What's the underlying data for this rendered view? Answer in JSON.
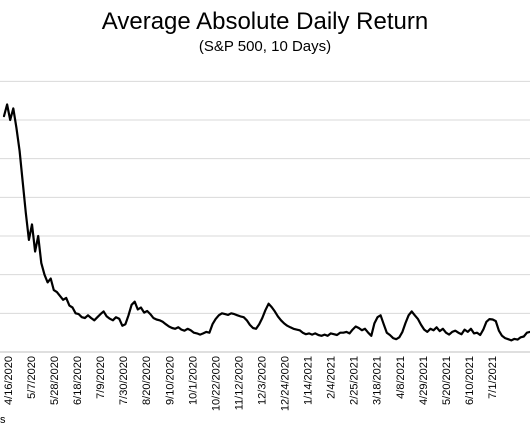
{
  "chart_data": {
    "type": "line",
    "title": "Average Absolute Daily Return",
    "subtitle": "(S&P 500, 10 Days)",
    "xlabel": "",
    "ylabel": "",
    "grid": true,
    "x_tick_labels": [
      "4/16/2020",
      "5/7/2020",
      "5/28/2020",
      "6/18/2020",
      "7/9/2020",
      "7/30/2020",
      "8/20/2020",
      "9/10/2020",
      "10/1/2020",
      "10/22/2020",
      "11/12/2020",
      "12/3/2020",
      "12/24/2020",
      "1/14/2021",
      "2/4/2021",
      "2/25/2021",
      "3/18/2021",
      "4/8/2021",
      "4/29/2021",
      "5/20/2021",
      "6/10/2021",
      "7/1/2021"
    ],
    "series": [
      {
        "values": [
          6.1,
          6.4,
          6.0,
          6.3,
          5.8,
          5.2,
          4.4,
          3.6,
          2.9,
          3.3,
          2.6,
          3.0,
          2.3,
          2.0,
          1.8,
          1.9,
          1.6,
          1.55,
          1.45,
          1.35,
          1.4,
          1.2,
          1.15,
          1.0,
          0.98,
          0.9,
          0.88,
          0.95,
          0.88,
          0.82,
          0.9,
          0.98,
          1.05,
          0.92,
          0.86,
          0.82,
          0.9,
          0.86,
          0.68,
          0.72,
          0.95,
          1.22,
          1.3,
          1.1,
          1.15,
          1.02,
          1.06,
          0.98,
          0.88,
          0.84,
          0.82,
          0.78,
          0.72,
          0.66,
          0.62,
          0.6,
          0.64,
          0.58,
          0.55,
          0.6,
          0.56,
          0.5,
          0.48,
          0.45,
          0.48,
          0.52,
          0.5,
          0.72,
          0.85,
          0.95,
          1.0,
          0.98,
          0.96,
          1.0,
          0.98,
          0.95,
          0.92,
          0.9,
          0.82,
          0.7,
          0.62,
          0.6,
          0.72,
          0.88,
          1.08,
          1.25,
          1.16,
          1.05,
          0.92,
          0.82,
          0.74,
          0.68,
          0.64,
          0.6,
          0.58,
          0.56,
          0.5,
          0.46,
          0.48,
          0.45,
          0.48,
          0.44,
          0.42,
          0.45,
          0.42,
          0.48,
          0.46,
          0.44,
          0.5,
          0.5,
          0.52,
          0.48,
          0.58,
          0.66,
          0.62,
          0.56,
          0.6,
          0.5,
          0.42,
          0.74,
          0.9,
          0.95,
          0.72,
          0.5,
          0.44,
          0.36,
          0.33,
          0.38,
          0.52,
          0.75,
          0.95,
          1.05,
          0.95,
          0.85,
          0.7,
          0.58,
          0.52,
          0.6,
          0.56,
          0.64,
          0.54,
          0.6,
          0.5,
          0.45,
          0.52,
          0.55,
          0.5,
          0.46,
          0.58,
          0.52,
          0.6,
          0.48,
          0.5,
          0.44,
          0.58,
          0.78,
          0.85,
          0.84,
          0.8,
          0.55,
          0.42,
          0.36,
          0.33,
          0.3,
          0.34,
          0.32,
          0.38,
          0.4,
          0.5,
          0.52
        ],
        "color": "#000000"
      }
    ],
    "ylim": [
      0,
      7.5
    ]
  },
  "source_note": "s"
}
